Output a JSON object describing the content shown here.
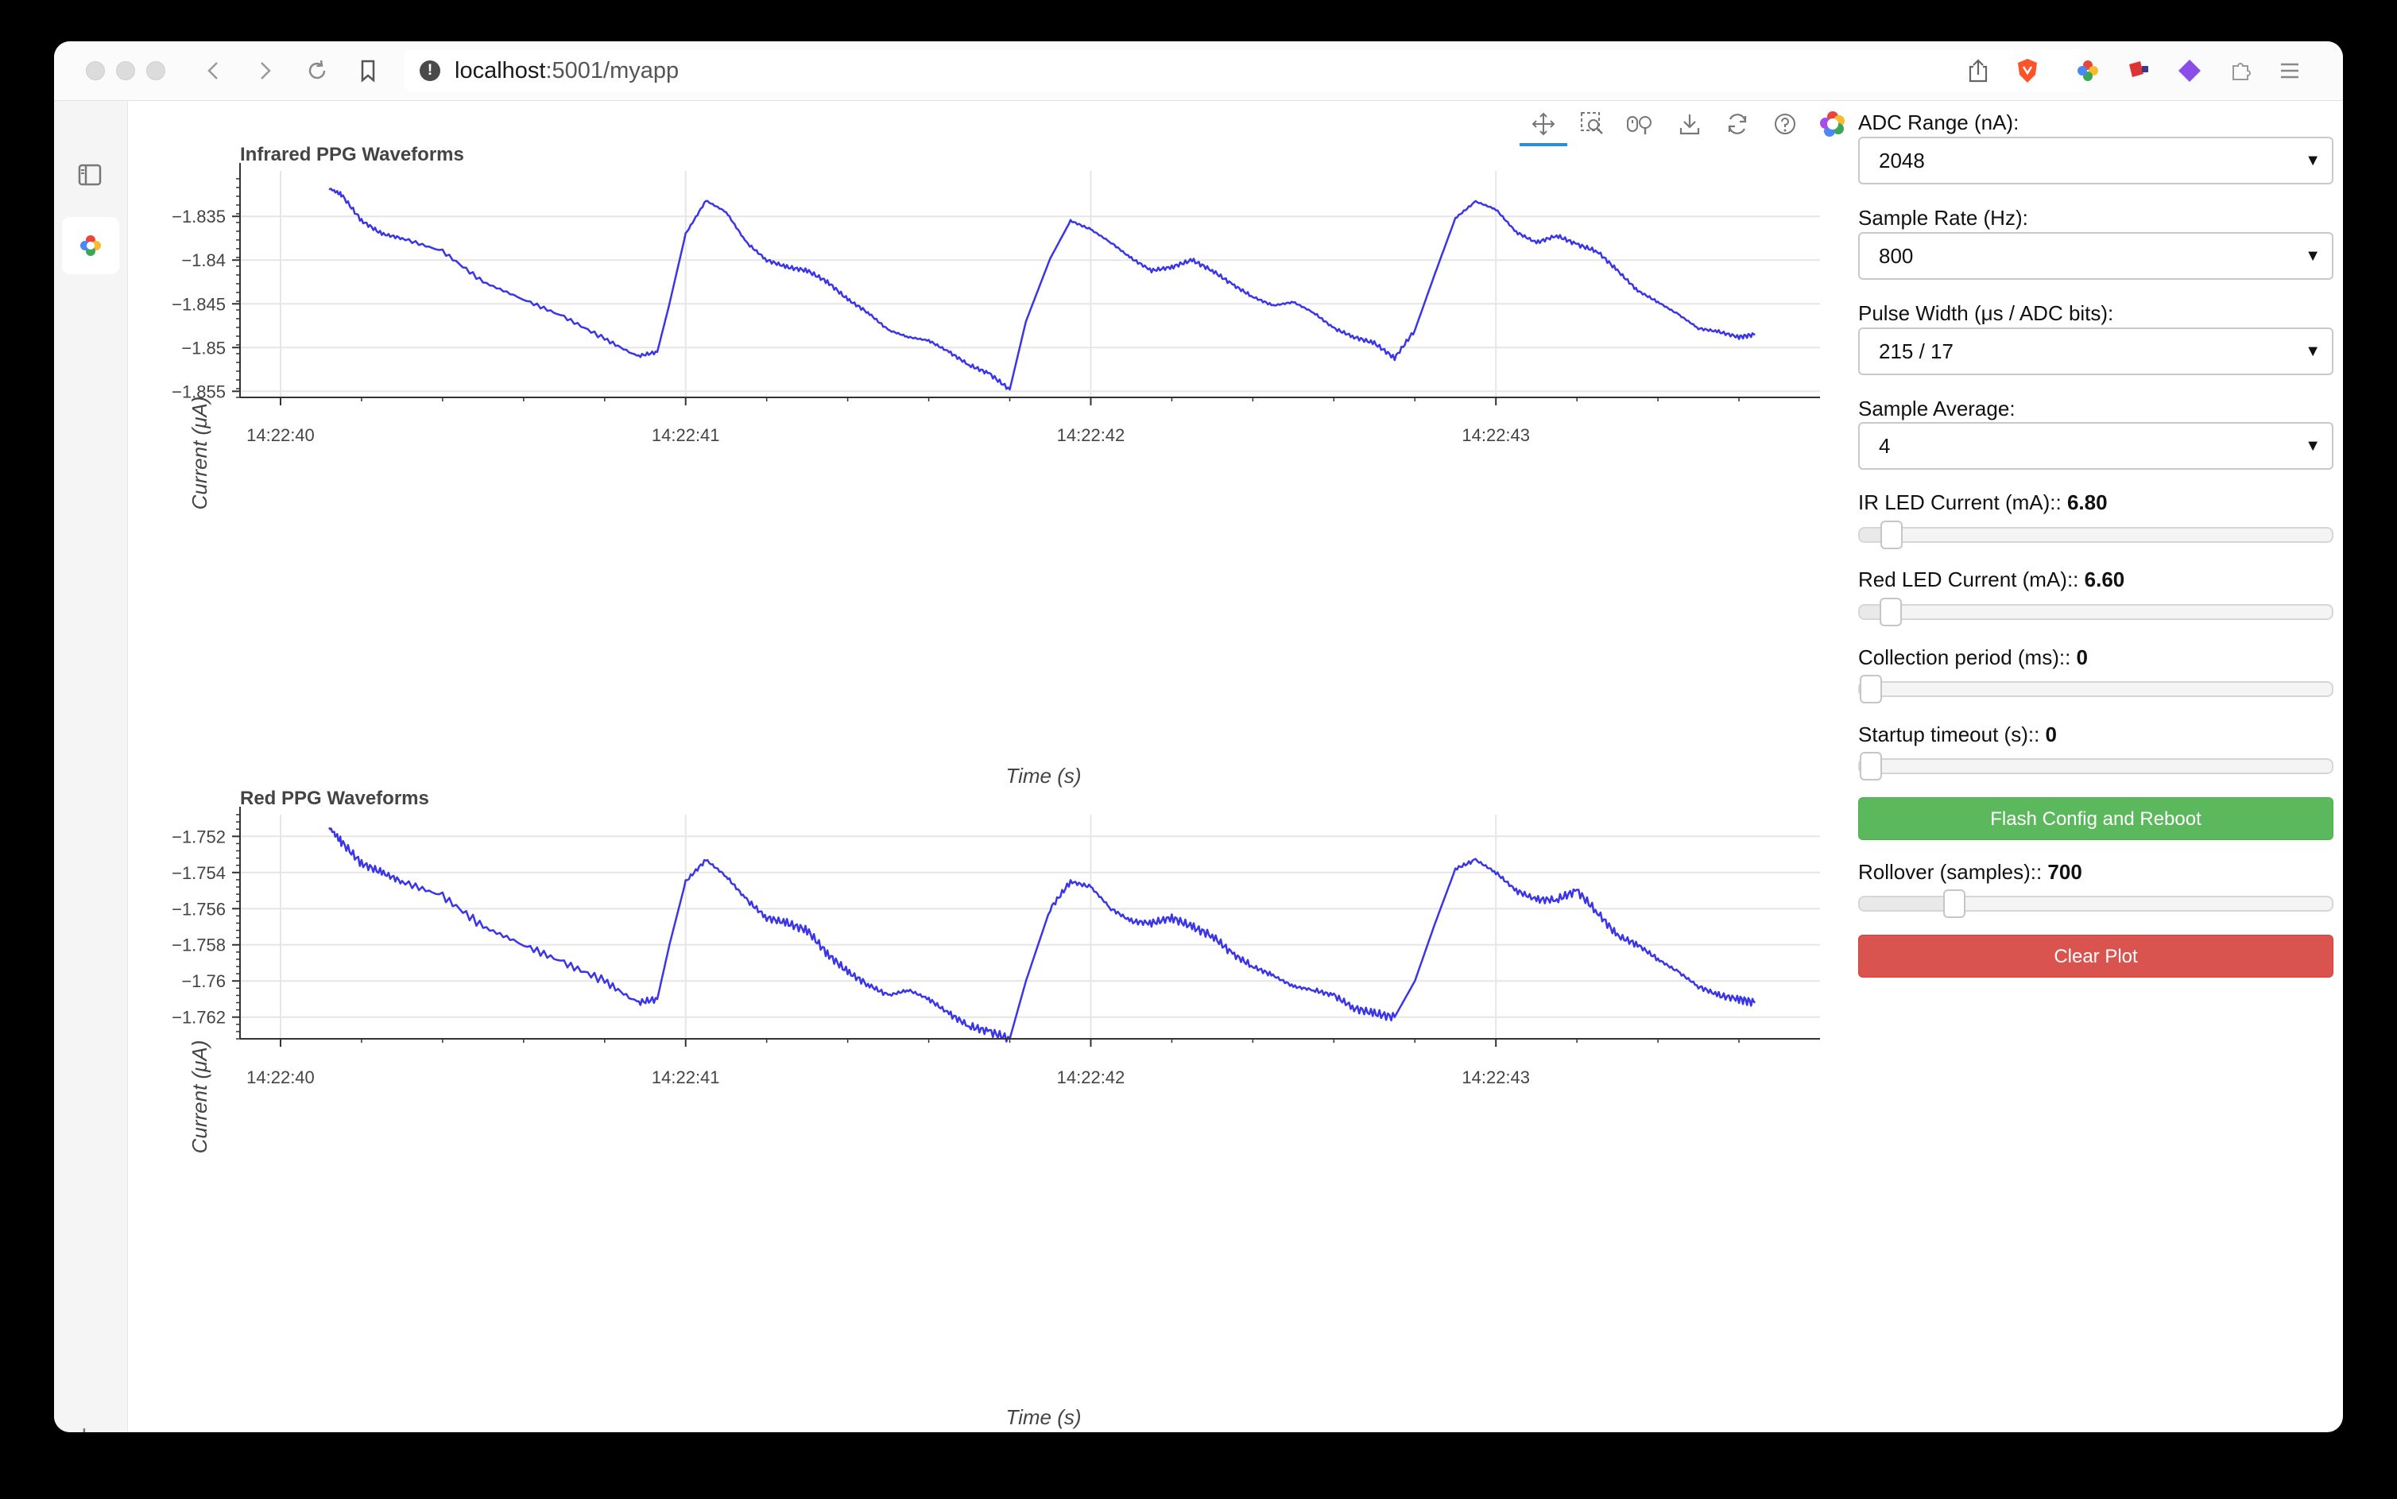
{
  "browser": {
    "url_host": "localhost",
    "url_rest": ":5001/myapp"
  },
  "plots": [
    {
      "title": "Infrared PPG Waveforms",
      "xlabel": "Time (s)",
      "ylabel": "Current (μA)",
      "line_color": "#3b35e8",
      "xticks": [
        "14:22:40",
        "14:22:41",
        "14:22:42",
        "14:22:43"
      ],
      "yticks": [
        "−1.835",
        "−1.84",
        "−1.845",
        "−1.85",
        "−1.855"
      ]
    },
    {
      "title": "Red PPG Waveforms",
      "xlabel": "Time (s)",
      "ylabel": "Current (μA)",
      "line_color": "#3b35e8",
      "xticks": [
        "14:22:40",
        "14:22:41",
        "14:22:42",
        "14:22:43"
      ],
      "yticks": [
        "−1.752",
        "−1.754",
        "−1.756",
        "−1.758",
        "−1.76",
        "−1.762"
      ]
    }
  ],
  "chart_data": [
    {
      "type": "line",
      "title": "Infrared PPG Waveforms",
      "xlabel": "Time (s)",
      "ylabel": "Current (μA)",
      "xlim": [
        -0.1,
        3.8
      ],
      "ylim": [
        -1.8557,
        -1.8298
      ],
      "series": [
        {
          "x": [
            0.12,
            0.15,
            0.2,
            0.25,
            0.3,
            0.4,
            0.5,
            0.6,
            0.7,
            0.8,
            0.88,
            0.93,
            0.96,
            1.0,
            1.05,
            1.1,
            1.15,
            1.2,
            1.25,
            1.3,
            1.35,
            1.4,
            1.45,
            1.5,
            1.55,
            1.6,
            1.65,
            1.7,
            1.75,
            1.8,
            1.84,
            1.9,
            1.95,
            2.0,
            2.05,
            2.1,
            2.15,
            2.2,
            2.25,
            2.3,
            2.35,
            2.4,
            2.45,
            2.5,
            2.55,
            2.6,
            2.65,
            2.7,
            2.75,
            2.8,
            2.85,
            2.9,
            2.95,
            3.0,
            3.05,
            3.1,
            3.15,
            3.2,
            3.25,
            3.3,
            3.35,
            3.4,
            3.45,
            3.5,
            3.55,
            3.6,
            3.64
          ],
          "y": [
            -1.8318,
            -1.8325,
            -1.8355,
            -1.837,
            -1.8375,
            -1.839,
            -1.8425,
            -1.8445,
            -1.8465,
            -1.849,
            -1.851,
            -1.8505,
            -1.845,
            -1.837,
            -1.8332,
            -1.8345,
            -1.838,
            -1.84,
            -1.8408,
            -1.8412,
            -1.8425,
            -1.8445,
            -1.846,
            -1.848,
            -1.8488,
            -1.8492,
            -1.8505,
            -1.852,
            -1.853,
            -1.8548,
            -1.847,
            -1.8398,
            -1.8355,
            -1.8365,
            -1.838,
            -1.8398,
            -1.8412,
            -1.8408,
            -1.84,
            -1.8412,
            -1.8428,
            -1.8442,
            -1.8452,
            -1.8448,
            -1.846,
            -1.8478,
            -1.8488,
            -1.8495,
            -1.8512,
            -1.848,
            -1.8415,
            -1.8352,
            -1.8333,
            -1.8342,
            -1.8368,
            -1.838,
            -1.8372,
            -1.8382,
            -1.839,
            -1.8412,
            -1.8435,
            -1.8448,
            -1.8462,
            -1.8478,
            -1.8482,
            -1.8488,
            -1.8485
          ]
        }
      ]
    },
    {
      "type": "line",
      "title": "Red PPG Waveforms",
      "xlabel": "Time (s)",
      "ylabel": "Current (μA)",
      "xlim": [
        -0.1,
        3.8
      ],
      "ylim": [
        -1.7632,
        -1.7508
      ],
      "series": [
        {
          "x": [
            0.12,
            0.15,
            0.2,
            0.25,
            0.3,
            0.4,
            0.5,
            0.6,
            0.7,
            0.8,
            0.88,
            0.93,
            0.96,
            1.0,
            1.05,
            1.1,
            1.15,
            1.2,
            1.25,
            1.3,
            1.35,
            1.4,
            1.45,
            1.5,
            1.55,
            1.6,
            1.65,
            1.7,
            1.75,
            1.8,
            1.84,
            1.9,
            1.95,
            2.0,
            2.05,
            2.1,
            2.15,
            2.2,
            2.25,
            2.3,
            2.35,
            2.4,
            2.45,
            2.5,
            2.55,
            2.6,
            2.65,
            2.7,
            2.75,
            2.8,
            2.85,
            2.9,
            2.95,
            3.0,
            3.05,
            3.1,
            3.15,
            3.2,
            3.25,
            3.3,
            3.35,
            3.4,
            3.45,
            3.5,
            3.55,
            3.6,
            3.64
          ],
          "y": [
            -1.7515,
            -1.7523,
            -1.7535,
            -1.754,
            -1.7545,
            -1.7553,
            -1.757,
            -1.758,
            -1.759,
            -1.76,
            -1.7612,
            -1.761,
            -1.758,
            -1.7545,
            -1.7533,
            -1.7542,
            -1.7555,
            -1.7565,
            -1.7568,
            -1.7572,
            -1.7585,
            -1.7595,
            -1.7602,
            -1.7608,
            -1.7605,
            -1.761,
            -1.7618,
            -1.7625,
            -1.7628,
            -1.7632,
            -1.76,
            -1.756,
            -1.7545,
            -1.7548,
            -1.756,
            -1.7567,
            -1.7568,
            -1.7565,
            -1.757,
            -1.7575,
            -1.7585,
            -1.7592,
            -1.7597,
            -1.7603,
            -1.7605,
            -1.7608,
            -1.7615,
            -1.7618,
            -1.762,
            -1.76,
            -1.7568,
            -1.7538,
            -1.7533,
            -1.754,
            -1.755,
            -1.7555,
            -1.7555,
            -1.755,
            -1.7562,
            -1.7575,
            -1.758,
            -1.7588,
            -1.7595,
            -1.7603,
            -1.7608,
            -1.761,
            -1.7612
          ]
        }
      ]
    }
  ],
  "controls": {
    "adc_range": {
      "label": "ADC Range (nA):",
      "value": "2048"
    },
    "sample_rate": {
      "label": "Sample Rate (Hz):",
      "value": "800"
    },
    "pulse_width": {
      "label": "Pulse Width (μs / ADC bits):",
      "value": "215 / 17"
    },
    "sample_average": {
      "label": "Sample Average:",
      "value": "4"
    },
    "ir_led": {
      "label": "IR LED Current (mA):: ",
      "value": "6.80",
      "fraction": 0.068
    },
    "red_led": {
      "label": "Red LED Current (mA):: ",
      "value": "6.60",
      "fraction": 0.066
    },
    "collection": {
      "label": "Collection period (ms):: ",
      "value": "0",
      "fraction": 0.0
    },
    "startup": {
      "label": "Startup timeout (s):: ",
      "value": "0",
      "fraction": 0.0
    },
    "flash_button": "Flash Config and Reboot",
    "rollover": {
      "label": "Rollover (samples):: ",
      "value": "700",
      "fraction": 0.2
    },
    "clear_button": "Clear Plot"
  }
}
